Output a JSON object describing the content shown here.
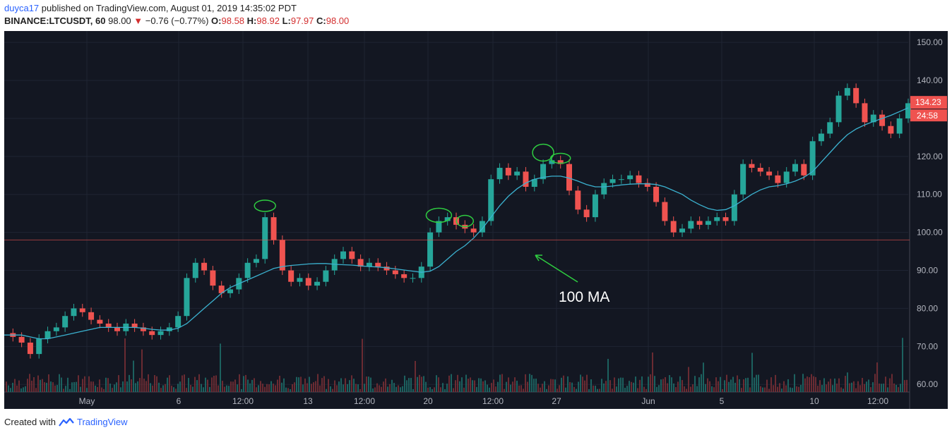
{
  "header": {
    "user": "duyca17",
    "published": "published on TradingView.com, August 01, 2019 14:35:02 PDT",
    "symbol": "BINANCE:LTCUSDT, 60",
    "last": "98.00",
    "arrow": "▼",
    "change": "−0.76 (−0.77%)",
    "o_label": "O:",
    "o": "98.58",
    "h_label": "H:",
    "h": "98.92",
    "l_label": "L:",
    "l": "97.97",
    "c_label": "C:",
    "c": "98.00"
  },
  "footer": {
    "prefix": "Created with",
    "brand": "TradingView",
    "logo_icon": "tradingview-logo-icon"
  },
  "colors": {
    "bg": "#131722",
    "up": "#26a69a",
    "down": "#ef5350",
    "ma": "#3bb1cf",
    "annot": "#2ecc40",
    "price_line": "#ef5350"
  },
  "chart_data": {
    "type": "line",
    "ylim": [
      58,
      153
    ],
    "y_ticks": [
      "150.00",
      "140.00",
      "130.00",
      "120.00",
      "110.00",
      "100.00",
      "90.00",
      "80.00",
      "70.00",
      "60.00"
    ],
    "x_ticks": [
      "May",
      "6",
      "12:00",
      "13",
      "12:00",
      "20",
      "12:00",
      "27",
      "Jun",
      "5",
      "10",
      "12:00"
    ],
    "price_badge": "134.23",
    "time_badge": "24:58",
    "horizontal_line": 98.0,
    "annotation": "100 MA",
    "series": [
      {
        "name": "price",
        "values": [
          73.5,
          72.5,
          71,
          68,
          72,
          74,
          75,
          78,
          80,
          79,
          77,
          76,
          75,
          74,
          76,
          75,
          74,
          73,
          74,
          75,
          78,
          88,
          92,
          90,
          86,
          84,
          85,
          88,
          92,
          93,
          104,
          98,
          90,
          87,
          88,
          86,
          87,
          90,
          93,
          95,
          93,
          91,
          92,
          91,
          90,
          89,
          88,
          88,
          91,
          100,
          103,
          104,
          102,
          101,
          100,
          103,
          114,
          117,
          115,
          116,
          112,
          114,
          118,
          119,
          118,
          111,
          106,
          104,
          110,
          113,
          114,
          114,
          115,
          113,
          112,
          108,
          103,
          100,
          101,
          103,
          102,
          103,
          104,
          103,
          110,
          118,
          117,
          116,
          115,
          113,
          116,
          118,
          115,
          124,
          126,
          129,
          136,
          138,
          134,
          129,
          131,
          128,
          126,
          130,
          134
        ]
      },
      {
        "name": "100 MA",
        "values": [
          73,
          73,
          73,
          72.5,
          72,
          72,
          72.5,
          73,
          73.5,
          74,
          74.5,
          75,
          75,
          75,
          75,
          75,
          74.8,
          74.5,
          74.3,
          74.3,
          74.8,
          76,
          78,
          80,
          82,
          84,
          85.5,
          86.5,
          87.5,
          88.5,
          89.5,
          90.5,
          91,
          91.3,
          91.5,
          91.7,
          91.8,
          91.8,
          91.6,
          91.5,
          91.4,
          91.2,
          91,
          90.9,
          90.7,
          90.4,
          90.1,
          89.8,
          89.5,
          89.8,
          91,
          93,
          95,
          96.5,
          98.5,
          101,
          104,
          107,
          109.5,
          111.5,
          113,
          114,
          114.5,
          114.8,
          114.8,
          114.3,
          113.5,
          112.6,
          112,
          112,
          112.2,
          112.5,
          112.7,
          112.8,
          112.8,
          112.6,
          112,
          111,
          110,
          108.5,
          107.3,
          106.3,
          105.8,
          106,
          107,
          108.5,
          110,
          111.2,
          112,
          112.3,
          112.8,
          113.5,
          114.5,
          116,
          118.5,
          121,
          123.5,
          125.7,
          127.2,
          128.3,
          129.2,
          130,
          130.8,
          131.8,
          132.8
        ]
      }
    ]
  }
}
